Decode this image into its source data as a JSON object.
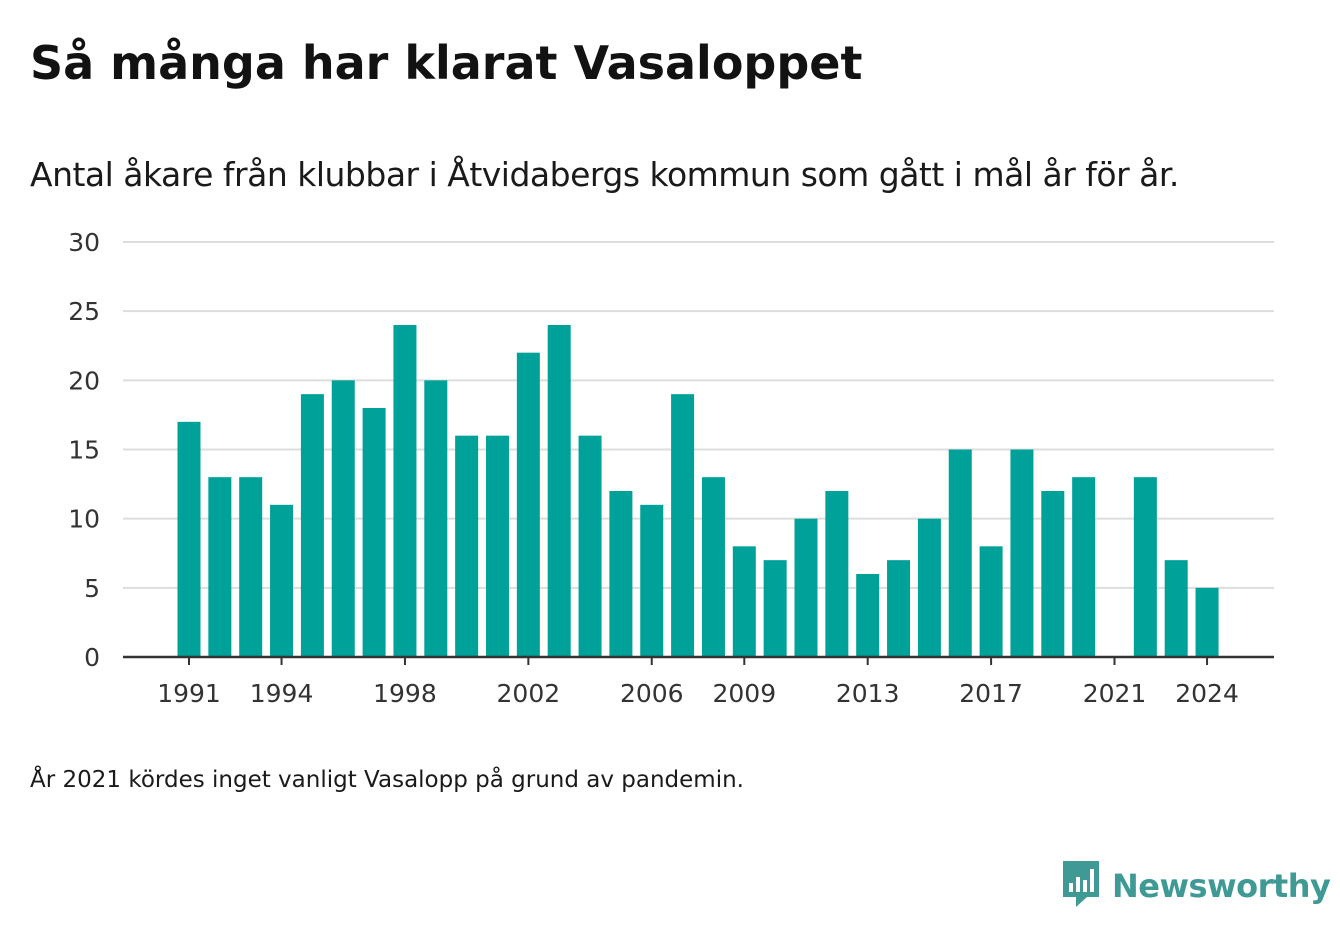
{
  "title": "Så många har klarat Vasaloppet",
  "subtitle": "Antal åkare från klubbar i Åtvidabergs kommun som gått i mål år för år.",
  "footnote": "År 2021 kördes inget vanligt Vasalopp på grund av pandemin.",
  "brand": {
    "name": "Newsworthy",
    "icon": "newsworthy-logo-icon",
    "color": "#3f9a95"
  },
  "colors": {
    "bar": "#00a199",
    "grid": "#dddddd",
    "axis": "#333333"
  },
  "chart_data": {
    "type": "bar",
    "categories": [
      "1991",
      "1992",
      "1993",
      "1994",
      "1995",
      "1996",
      "1997",
      "1998",
      "1999",
      "2000",
      "2001",
      "2002",
      "2003",
      "2004",
      "2005",
      "2006",
      "2007",
      "2008",
      "2009",
      "2010",
      "2011",
      "2012",
      "2013",
      "2014",
      "2015",
      "2016",
      "2017",
      "2018",
      "2019",
      "2020",
      "2021",
      "2022",
      "2023",
      "2024"
    ],
    "values": [
      17,
      13,
      13,
      11,
      19,
      20,
      18,
      24,
      20,
      16,
      16,
      22,
      24,
      16,
      12,
      11,
      19,
      13,
      8,
      7,
      10,
      12,
      6,
      7,
      10,
      15,
      8,
      15,
      12,
      13,
      null,
      13,
      7,
      5
    ],
    "xticks": [
      "1991",
      "1994",
      "1998",
      "2002",
      "2006",
      "2009",
      "2013",
      "2017",
      "2021",
      "2024"
    ],
    "yticks": [
      0,
      5,
      10,
      15,
      20,
      25,
      30
    ],
    "ylim": [
      0,
      30
    ],
    "grid": true
  }
}
